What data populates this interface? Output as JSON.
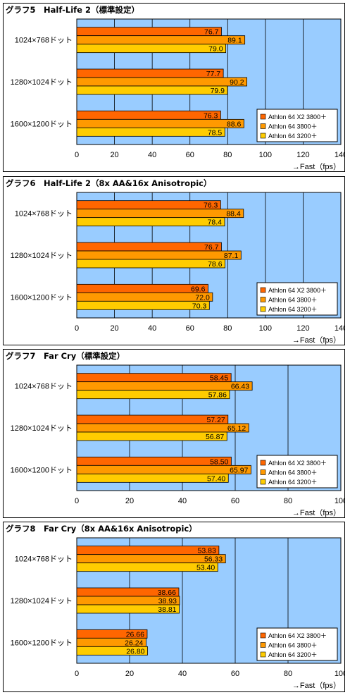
{
  "colors": {
    "plot_bg": "#99ccff",
    "series": [
      "#ff6600",
      "#ff9900",
      "#ffcc00"
    ]
  },
  "chart_data": [
    {
      "type": "bar",
      "title": "グラフ5　Half-Life 2（標準設定）",
      "categories": [
        "1024×768ドット",
        "1280×1024ドット",
        "1600×1200ドット"
      ],
      "series": [
        {
          "name": "Athlon 64 X2 3800＋",
          "values": [
            76.7,
            77.7,
            76.3
          ]
        },
        {
          "name": "Athlon 64 3800＋",
          "values": [
            89.1,
            90.2,
            88.6
          ]
        },
        {
          "name": "Athlon 64 3200＋",
          "values": [
            79.0,
            79.9,
            78.5
          ]
        }
      ],
      "labels": [
        [
          "76.7",
          "77.7",
          "76.3"
        ],
        [
          "89.1",
          "90.2",
          "88.6"
        ],
        [
          "79.0",
          "79.9",
          "78.5"
        ]
      ],
      "xlim": [
        0,
        140
      ],
      "ticks": [
        "0",
        "20",
        "40",
        "60",
        "80",
        "100",
        "120",
        "140"
      ],
      "xlabel": "→Fast（fps）",
      "legend": "bottom-right",
      "grid": true
    },
    {
      "type": "bar",
      "title": "グラフ6　Half-Life 2（8x AA&16x Anisotropic）",
      "categories": [
        "1024×768ドット",
        "1280×1024ドット",
        "1600×1200ドット"
      ],
      "series": [
        {
          "name": "Athlon 64 X2 3800＋",
          "values": [
            76.3,
            76.7,
            69.6
          ]
        },
        {
          "name": "Athlon 64 3800＋",
          "values": [
            88.4,
            87.1,
            72.0
          ]
        },
        {
          "name": "Athlon 64 3200＋",
          "values": [
            78.4,
            78.6,
            70.3
          ]
        }
      ],
      "labels": [
        [
          "76.3",
          "76.7",
          "69.6"
        ],
        [
          "88.4",
          "87.1",
          "72.0"
        ],
        [
          "78.4",
          "78.6",
          "70.3"
        ]
      ],
      "xlim": [
        0,
        140
      ],
      "ticks": [
        "0",
        "20",
        "40",
        "60",
        "80",
        "100",
        "120",
        "140"
      ],
      "xlabel": "→Fast（fps）",
      "legend": "bottom-right",
      "grid": true
    },
    {
      "type": "bar",
      "title": "グラフ7　Far Cry（標準設定）",
      "categories": [
        "1024×768ドット",
        "1280×1024ドット",
        "1600×1200ドット"
      ],
      "series": [
        {
          "name": "Athlon 64 X2 3800＋",
          "values": [
            58.45,
            57.27,
            58.5
          ]
        },
        {
          "name": "Athlon 64 3800＋",
          "values": [
            66.43,
            65.12,
            65.97
          ]
        },
        {
          "name": "Athlon 64 3200＋",
          "values": [
            57.86,
            56.87,
            57.4
          ]
        }
      ],
      "labels": [
        [
          "58.45",
          "57.27",
          "58.50"
        ],
        [
          "66.43",
          "65.12",
          "65.97"
        ],
        [
          "57.86",
          "56.87",
          "57.40"
        ]
      ],
      "xlim": [
        0,
        100
      ],
      "ticks": [
        "0",
        "20",
        "40",
        "60",
        "80",
        "100"
      ],
      "xlabel": "→Fast（fps）",
      "legend": "bottom-right",
      "grid": true
    },
    {
      "type": "bar",
      "title": "グラフ8　Far Cry（8x AA&16x Anisotropic）",
      "categories": [
        "1024×768ドット",
        "1280×1024ドット",
        "1600×1200ドット"
      ],
      "series": [
        {
          "name": "Athlon 64 X2 3800＋",
          "values": [
            53.83,
            38.66,
            26.66
          ]
        },
        {
          "name": "Athlon 64 3800＋",
          "values": [
            56.33,
            38.93,
            26.24
          ]
        },
        {
          "name": "Athlon 64 3200＋",
          "values": [
            53.4,
            38.81,
            26.8
          ]
        }
      ],
      "labels": [
        [
          "53.83",
          "38.66",
          "26.66"
        ],
        [
          "56.33",
          "38.93",
          "26.24"
        ],
        [
          "53.40",
          "38.81",
          "26.80"
        ]
      ],
      "xlim": [
        0,
        100
      ],
      "ticks": [
        "0",
        "20",
        "40",
        "60",
        "80",
        "100"
      ],
      "xlabel": "→Fast（fps）",
      "legend": "bottom-right",
      "grid": true
    }
  ]
}
